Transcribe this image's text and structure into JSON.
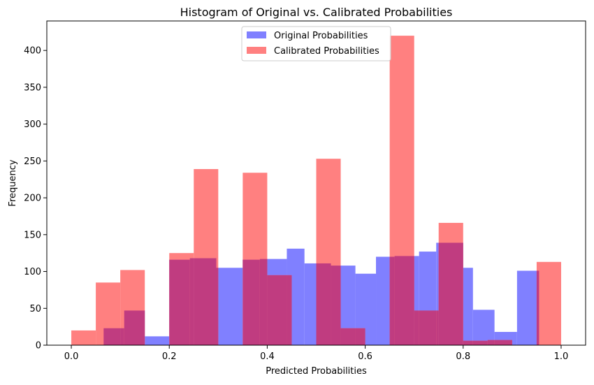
{
  "chart_data": {
    "type": "bar",
    "title": "Histogram of Original vs. Calibrated Probabilities",
    "xlabel": "Predicted Probabilities",
    "ylabel": "Frequency",
    "xlim": [
      -0.05,
      1.05
    ],
    "ylim": [
      0,
      440
    ],
    "x_ticks": [
      "0.0",
      "0.2",
      "0.4",
      "0.6",
      "0.8",
      "1.0"
    ],
    "y_ticks": [
      "0",
      "50",
      "100",
      "150",
      "200",
      "250",
      "300",
      "350",
      "400"
    ],
    "grid": false,
    "legend_position": "top-center",
    "overlap_color": "#c03c80",
    "series": [
      {
        "name": "Original Probabilities",
        "color": "#8080ff",
        "bins": [
          [
            0.066,
            0.108,
            23
          ],
          [
            0.108,
            0.15,
            47
          ],
          [
            0.15,
            0.2,
            12
          ],
          [
            0.2,
            0.242,
            116
          ],
          [
            0.242,
            0.296,
            118
          ],
          [
            0.296,
            0.35,
            105
          ],
          [
            0.35,
            0.385,
            116
          ],
          [
            0.385,
            0.44,
            117
          ],
          [
            0.44,
            0.476,
            131
          ],
          [
            0.476,
            0.53,
            111
          ],
          [
            0.53,
            0.58,
            108
          ],
          [
            0.58,
            0.622,
            97
          ],
          [
            0.622,
            0.66,
            120
          ],
          [
            0.66,
            0.71,
            121
          ],
          [
            0.71,
            0.745,
            127
          ],
          [
            0.745,
            0.8,
            139
          ],
          [
            0.8,
            0.82,
            105
          ],
          [
            0.82,
            0.864,
            48
          ],
          [
            0.864,
            0.91,
            18
          ],
          [
            0.91,
            0.955,
            101
          ]
        ]
      },
      {
        "name": "Calibrated Probabilities",
        "color": "#ff8080",
        "bins": [
          [
            0.0,
            0.05,
            20
          ],
          [
            0.05,
            0.1,
            85
          ],
          [
            0.1,
            0.15,
            102
          ],
          [
            0.15,
            0.2,
            0
          ],
          [
            0.2,
            0.25,
            125
          ],
          [
            0.25,
            0.3,
            239
          ],
          [
            0.3,
            0.35,
            0
          ],
          [
            0.35,
            0.4,
            234
          ],
          [
            0.4,
            0.45,
            95
          ],
          [
            0.45,
            0.5,
            0
          ],
          [
            0.5,
            0.55,
            253
          ],
          [
            0.55,
            0.6,
            23
          ],
          [
            0.6,
            0.65,
            0
          ],
          [
            0.65,
            0.7,
            420
          ],
          [
            0.7,
            0.75,
            47
          ],
          [
            0.75,
            0.8,
            166
          ],
          [
            0.8,
            0.85,
            6
          ],
          [
            0.85,
            0.9,
            7
          ],
          [
            0.9,
            0.95,
            0
          ],
          [
            0.95,
            1.0,
            113
          ]
        ]
      }
    ]
  }
}
